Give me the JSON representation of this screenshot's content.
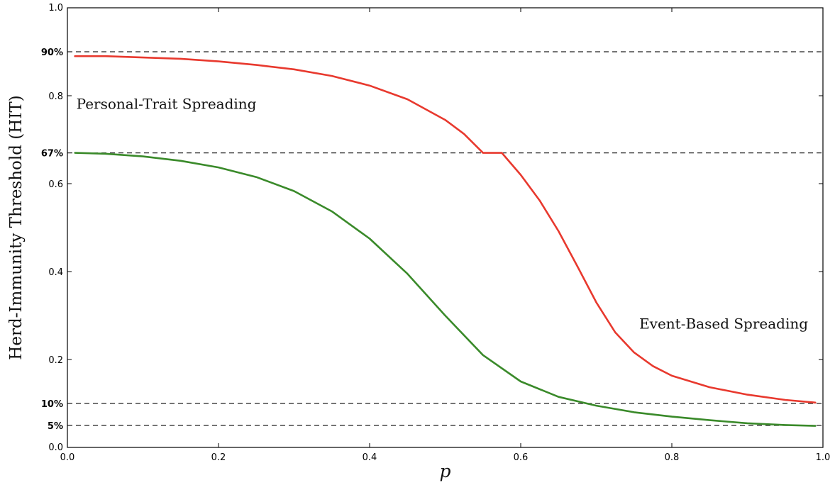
{
  "chart_data": {
    "type": "line",
    "xlabel": "p",
    "ylabel": "Herd-Immunity Threshold (HIT)",
    "xlim": [
      0.0,
      1.0
    ],
    "ylim": [
      0.0,
      1.0
    ],
    "x_ticks": [
      "0.0",
      "0.2",
      "0.4",
      "0.6",
      "0.8",
      "1.0"
    ],
    "y_ticks": [
      {
        "value": 0.0,
        "label": "0.0"
      },
      {
        "value": 0.2,
        "label": "0.2"
      },
      {
        "value": 0.4,
        "label": "0.4"
      },
      {
        "value": 0.6,
        "label": "0.6"
      },
      {
        "value": 0.8,
        "label": "0.8"
      },
      {
        "value": 1.0,
        "label": "1.0"
      }
    ],
    "reference_lines": [
      {
        "value": 0.9,
        "label": "90%"
      },
      {
        "value": 0.67,
        "label": "67%"
      },
      {
        "value": 0.1,
        "label": "10%"
      },
      {
        "value": 0.05,
        "label": "5%"
      }
    ],
    "annotations": [
      {
        "text": "Personal-Trait Spreading",
        "x": 0.01,
        "y": 0.77
      },
      {
        "text": "Event-Based Spreading",
        "x": 0.755,
        "y": 0.27
      }
    ],
    "grid": false,
    "series": [
      {
        "color": "#e8392e",
        "x": [
          0.01,
          0.05,
          0.1,
          0.15,
          0.2,
          0.25,
          0.3,
          0.35,
          0.4,
          0.45,
          0.5,
          0.525,
          0.55,
          0.575,
          0.6,
          0.625,
          0.65,
          0.675,
          0.7,
          0.725,
          0.75,
          0.775,
          0.8,
          0.85,
          0.9,
          0.95,
          0.99
        ],
        "values": [
          0.89,
          0.89,
          0.887,
          0.884,
          0.878,
          0.87,
          0.86,
          0.845,
          0.823,
          0.792,
          0.745,
          0.713,
          0.67,
          0.67,
          0.62,
          0.562,
          0.492,
          0.412,
          0.33,
          0.262,
          0.216,
          0.185,
          0.163,
          0.137,
          0.12,
          0.108,
          0.102
        ]
      },
      {
        "color": "#3a8a2a",
        "x": [
          0.01,
          0.05,
          0.1,
          0.15,
          0.2,
          0.25,
          0.3,
          0.35,
          0.4,
          0.45,
          0.5,
          0.55,
          0.6,
          0.65,
          0.7,
          0.75,
          0.8,
          0.85,
          0.9,
          0.95,
          0.99
        ],
        "values": [
          0.67,
          0.668,
          0.662,
          0.652,
          0.637,
          0.615,
          0.583,
          0.537,
          0.475,
          0.395,
          0.3,
          0.21,
          0.15,
          0.115,
          0.095,
          0.08,
          0.07,
          0.062,
          0.055,
          0.051,
          0.049
        ]
      }
    ]
  }
}
